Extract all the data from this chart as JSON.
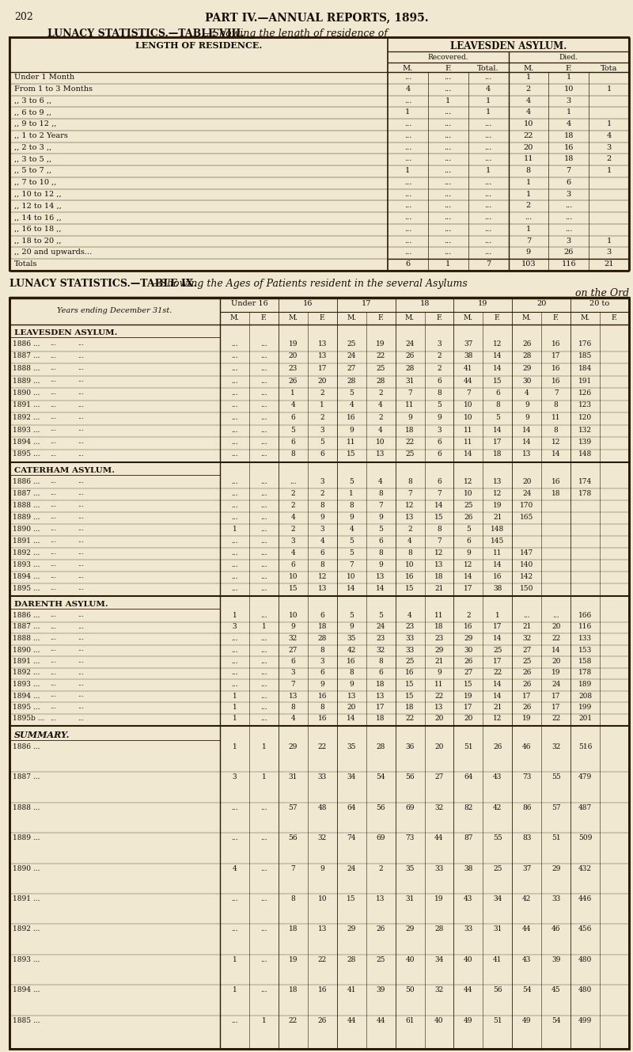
{
  "page_number": "202",
  "page_title": "PART IV.—ANNUAL REPORTS, 1895.",
  "bg_color": "#f0e8d0",
  "text_color": "#1a1008",
  "table8_heading_bold": "LUNACY STATISTICS.—TABLE VIII.",
  "table8_heading_italic": "—Showing the length of residence of",
  "table8_col_header1": "LENGTH OF RESIDENCE.",
  "table8_col_header2": "LEAVESDEN ASYLUM.",
  "table8_sub1": "Recovered.",
  "table8_sub2": "Died.",
  "table8_cols": [
    "M.",
    "F.",
    "Total.",
    "M.",
    "F.",
    "Tota"
  ],
  "table8_rows": [
    [
      "Under 1 Month",
      "...",
      "...",
      "...",
      "1",
      "1",
      ""
    ],
    [
      "From 1 to 3 Months",
      "4",
      "...",
      "4",
      "2",
      "10",
      "1"
    ],
    [
      ",, 3 to 6 ,,",
      "...",
      "1",
      "1",
      "4",
      "3",
      ""
    ],
    [
      ",, 6 to 9 ,,",
      "1",
      "...",
      "1",
      "4",
      "1",
      ""
    ],
    [
      ",, 9 to 12 ,,",
      "...",
      "...",
      "...",
      "10",
      "4",
      "1"
    ],
    [
      ",, 1 to 2 Years",
      "...",
      "...",
      "...",
      "22",
      "18",
      "4"
    ],
    [
      ",, 2 to 3 ,,",
      "...",
      "...",
      "...",
      "20",
      "16",
      "3"
    ],
    [
      ",, 3 to 5 ,,",
      "...",
      "...",
      "...",
      "11",
      "18",
      "2"
    ],
    [
      ",, 5 to 7 ,,",
      "1",
      "...",
      "1",
      "8",
      "7",
      "1"
    ],
    [
      ",, 7 to 10 ,,",
      "...",
      "...",
      "...",
      "1",
      "6",
      ""
    ],
    [
      ",, 10 to 12 ,,",
      "...",
      "...",
      "...",
      "1",
      "3",
      ""
    ],
    [
      ",, 12 to 14 ,,",
      "...",
      "...",
      "...",
      "2",
      "...",
      ""
    ],
    [
      ",, 14 to 16 ,,",
      "...",
      "...",
      "...",
      "...",
      "...",
      ""
    ],
    [
      ",, 16 to 18 ,,",
      "...",
      "...",
      "...",
      "1",
      "...",
      ""
    ],
    [
      ",, 18 to 20 ,,",
      "...",
      "...",
      "...",
      "7",
      "3",
      "1"
    ],
    [
      ",, 20 and upwards...",
      "...",
      "...",
      "...",
      "9",
      "26",
      "3"
    ],
    [
      "Totals",
      "6",
      "1",
      "7",
      "103",
      "116",
      "21"
    ]
  ],
  "table9_heading_bold": "LUNACY STATISTICS.—TABLE IX.",
  "table9_heading_italic": "—Showing the Ages of Patients resident in the several Asylums",
  "table9_subheading": "on the Ord",
  "table9_year_col": "Years ending December 31st.",
  "leavesden_label": "LEAVESDEN ASYLUM.",
  "leavesden_rows": [
    [
      "1886 ...",
      "...",
      "...",
      "19",
      "13",
      "25",
      "19",
      "24",
      "3",
      "37",
      "12",
      "26",
      "16",
      "176"
    ],
    [
      "1887 ...",
      "...",
      "...",
      "20",
      "13",
      "24",
      "22",
      "26",
      "2",
      "38",
      "14",
      "28",
      "17",
      "185"
    ],
    [
      "1888 ...",
      "...",
      "...",
      "23",
      "17",
      "27",
      "25",
      "28",
      "2",
      "41",
      "14",
      "29",
      "16",
      "184"
    ],
    [
      "1889 ...",
      "...",
      "...",
      "26",
      "20",
      "28",
      "28",
      "31",
      "6",
      "44",
      "15",
      "30",
      "16",
      "191"
    ],
    [
      "1890 ...",
      "...",
      "...",
      "1",
      "2",
      "5",
      "2",
      "7",
      "8",
      "7",
      "6",
      "4",
      "7",
      "126"
    ],
    [
      "1891 ...",
      "...",
      "...",
      "4",
      "1",
      "4",
      "4",
      "11",
      "5",
      "10",
      "8",
      "9",
      "8",
      "123"
    ],
    [
      "1892 ...",
      "...",
      "...",
      "6",
      "2",
      "16",
      "2",
      "9",
      "9",
      "10",
      "5",
      "9",
      "11",
      "120"
    ],
    [
      "1893 ...",
      "...",
      "...",
      "5",
      "3",
      "9",
      "4",
      "18",
      "3",
      "11",
      "14",
      "14",
      "8",
      "132"
    ],
    [
      "1894 ...",
      "...",
      "...",
      "6",
      "5",
      "11",
      "10",
      "22",
      "6",
      "11",
      "17",
      "14",
      "12",
      "139"
    ],
    [
      "1895 ...",
      "...",
      "...",
      "8",
      "6",
      "15",
      "13",
      "25",
      "6",
      "14",
      "18",
      "13",
      "14",
      "148"
    ]
  ],
  "caterham_label": "CATERHAM ASYLUM.",
  "caterham_rows": [
    [
      "1886 ...",
      "...",
      "...",
      "...",
      "3",
      "5",
      "4",
      "8",
      "6",
      "12",
      "13",
      "20",
      "16",
      "174"
    ],
    [
      "1887 ...",
      "...",
      "...",
      "2",
      "2",
      "1",
      "8",
      "7",
      "7",
      "10",
      "12",
      "24",
      "18",
      "178"
    ],
    [
      "1888 ...",
      "...",
      "...",
      "2",
      "8",
      "8",
      "7",
      "12",
      "14",
      "25",
      "19",
      "170"
    ],
    [
      "1889 ...",
      "...",
      "...",
      "4",
      "9",
      "9",
      "9",
      "13",
      "15",
      "26",
      "21",
      "165"
    ],
    [
      "1890 ...",
      "1",
      "...",
      "2",
      "3",
      "4",
      "5",
      "2",
      "8",
      "5",
      "148"
    ],
    [
      "1891 ...",
      "...",
      "...",
      "3",
      "4",
      "5",
      "6",
      "4",
      "7",
      "6",
      "145"
    ],
    [
      "1892 ...",
      "...",
      "...",
      "4",
      "6",
      "5",
      "8",
      "8",
      "12",
      "9",
      "11",
      "147"
    ],
    [
      "1893 ...",
      "...",
      "...",
      "6",
      "8",
      "7",
      "9",
      "10",
      "13",
      "12",
      "14",
      "140"
    ],
    [
      "1894 ...",
      "...",
      "...",
      "10",
      "12",
      "10",
      "13",
      "16",
      "18",
      "14",
      "16",
      "142"
    ],
    [
      "1895 ...",
      "...",
      "...",
      "15",
      "13",
      "14",
      "14",
      "15",
      "21",
      "17",
      "38",
      "150"
    ]
  ],
  "darenth_label": "DARENTH ASYLUM.",
  "darenth_rows": [
    [
      "1886 ...",
      "1",
      "...",
      "10",
      "6",
      "5",
      "5",
      "4",
      "11",
      "2",
      "1",
      "...",
      "...",
      "166"
    ],
    [
      "1887 ...",
      "3",
      "1",
      "9",
      "18",
      "9",
      "24",
      "23",
      "18",
      "16",
      "17",
      "21",
      "20",
      "116"
    ],
    [
      "1888 ...",
      "...",
      "...",
      "32",
      "28",
      "35",
      "23",
      "33",
      "23",
      "29",
      "14",
      "32",
      "22",
      "133"
    ],
    [
      "1890 ...",
      "...",
      "...",
      "27",
      "8",
      "42",
      "32",
      "33",
      "29",
      "30",
      "25",
      "27",
      "14",
      "153"
    ],
    [
      "1891 ...",
      "...",
      "...",
      "6",
      "3",
      "16",
      "8",
      "25",
      "21",
      "26",
      "17",
      "25",
      "20",
      "158"
    ],
    [
      "1892 ...",
      "...",
      "...",
      "3",
      "6",
      "8",
      "6",
      "16",
      "9",
      "27",
      "22",
      "26",
      "19",
      "178"
    ],
    [
      "1893 ...",
      "...",
      "...",
      "7",
      "9",
      "9",
      "18",
      "15",
      "11",
      "15",
      "14",
      "26",
      "24",
      "189"
    ],
    [
      "1894 ...",
      "1",
      "...",
      "13",
      "16",
      "13",
      "13",
      "15",
      "22",
      "19",
      "14",
      "17",
      "17",
      "208"
    ],
    [
      "1895 ...",
      "1",
      "...",
      "8",
      "8",
      "20",
      "17",
      "18",
      "13",
      "17",
      "21",
      "26",
      "17",
      "199"
    ],
    [
      "1895b ...",
      "1",
      "...",
      "4",
      "16",
      "14",
      "18",
      "22",
      "20",
      "20",
      "12",
      "19",
      "22",
      "201"
    ]
  ],
  "summary_label": "SUMMARY.",
  "summary_rows": [
    [
      "1886 ...",
      "1",
      "1",
      "29",
      "22",
      "35",
      "28",
      "36",
      "20",
      "51",
      "26",
      "46",
      "32",
      "516"
    ],
    [
      "1887 ...",
      "3",
      "1",
      "31",
      "33",
      "34",
      "54",
      "56",
      "27",
      "64",
      "43",
      "73",
      "55",
      "479"
    ],
    [
      "1888 ...",
      "...",
      "...",
      "57",
      "48",
      "64",
      "56",
      "69",
      "32",
      "82",
      "42",
      "86",
      "57",
      "487"
    ],
    [
      "1889 ...",
      "...",
      "...",
      "56",
      "32",
      "74",
      "69",
      "73",
      "44",
      "87",
      "55",
      "83",
      "51",
      "509"
    ],
    [
      "1890 ...",
      "4",
      "...",
      "7",
      "9",
      "24",
      "2",
      "35",
      "33",
      "38",
      "25",
      "37",
      "29",
      "432"
    ],
    [
      "1891 ...",
      "...",
      "...",
      "8",
      "10",
      "15",
      "13",
      "31",
      "19",
      "43",
      "34",
      "42",
      "33",
      "446"
    ],
    [
      "1892 ...",
      "...",
      "...",
      "18",
      "13",
      "29",
      "26",
      "29",
      "28",
      "33",
      "31",
      "44",
      "46",
      "456"
    ],
    [
      "1893 ...",
      "1",
      "...",
      "19",
      "22",
      "28",
      "25",
      "40",
      "34",
      "40",
      "41",
      "43",
      "39",
      "480"
    ],
    [
      "1894 ...",
      "1",
      "...",
      "18",
      "16",
      "41",
      "39",
      "50",
      "32",
      "44",
      "56",
      "54",
      "45",
      "480"
    ],
    [
      "1885 ...",
      "...",
      "1",
      "22",
      "26",
      "44",
      "44",
      "61",
      "40",
      "49",
      "51",
      "49",
      "54",
      "499"
    ]
  ]
}
